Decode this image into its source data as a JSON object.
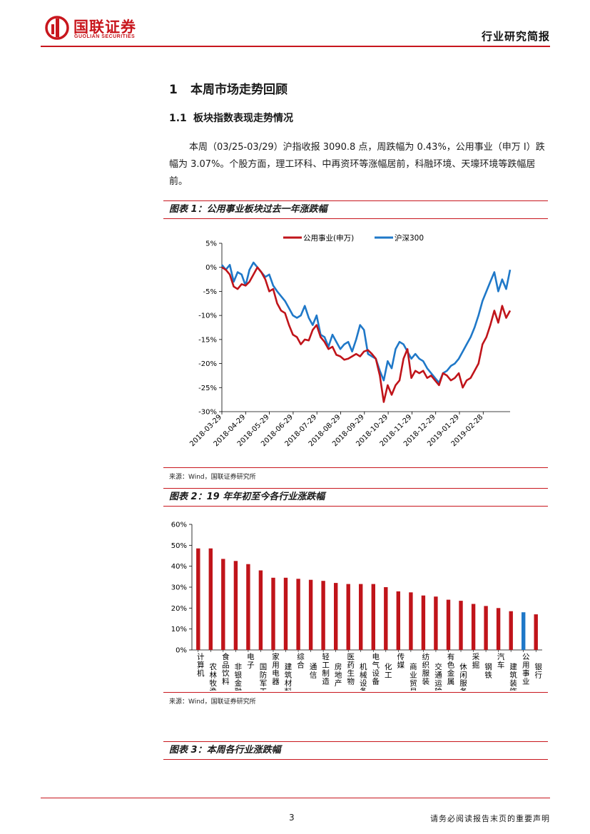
{
  "header": {
    "logo_cn": "国联证券",
    "logo_en": "GUOLIAN SECURITIES",
    "report_type": "行业研究简报"
  },
  "section": {
    "num": "1",
    "title": "本周市场走势回顾",
    "sub_num": "1.1",
    "sub_title": "板块指数表现走势情况"
  },
  "paragraph": "本周（03/25-03/29）沪指收报 3090.8 点，周跌幅为 0.43%，公用事业（申万 I）跌幅为 3.07%。个股方面，理工环科、中再资环等涨幅居前，科融环境、天壕环境等跌幅居前。",
  "figures": [
    {
      "title": "图表 1：公用事业板块过去一年涨跌幅",
      "source": "来源：Wind，国联证券研究所"
    },
    {
      "title": "图表 2：19 年年初至今各行业涨跌幅",
      "source": "来源：Wind，国联证券研究所"
    },
    {
      "title": "图表 3：本周各行业涨跌幅"
    }
  ],
  "colors": {
    "brand": "#c8161d",
    "line_red": "#c0141a",
    "line_blue": "#1f78c8"
  },
  "chart_data": [
    {
      "type": "line",
      "title": "公用事业板块过去一年涨跌幅",
      "x_ticks": [
        "2018-03-29",
        "2018-04-29",
        "2018-05-29",
        "2018-06-29",
        "2018-07-29",
        "2018-08-29",
        "2018-09-29",
        "2018-10-29",
        "2018-11-29",
        "2018-12-29",
        "2019-01-29",
        "2019-02-28"
      ],
      "ylim": [
        -30,
        5
      ],
      "y_ticks": [
        "5%",
        "0%",
        "-5%",
        "-10%",
        "-15%",
        "-20%",
        "-25%",
        "-30%"
      ],
      "series": [
        {
          "name": "公用事业(申万)",
          "color": "#c0141a",
          "values": [
            0,
            -0.5,
            -1.5,
            -4,
            -4.5,
            -3.5,
            -3.8,
            -3,
            -1.5,
            0,
            -1,
            -2.5,
            -5,
            -4.5,
            -7.5,
            -9,
            -9.5,
            -12,
            -14,
            -14.5,
            -16,
            -15,
            -15.2,
            -13,
            -12,
            -14.5,
            -15.5,
            -17,
            -16.5,
            -18.2,
            -18.5,
            -19.2,
            -19,
            -18.5,
            -18,
            -18.5,
            -17.5,
            -17.2,
            -18,
            -19,
            -22.5,
            -28,
            -24.5,
            -26.5,
            -24.5,
            -23.5,
            -19,
            -17,
            -23,
            -21.5,
            -22,
            -21.5,
            -23,
            -22.5,
            -23.5,
            -24.5,
            -22,
            -22.5,
            -23.5,
            -23,
            -22,
            -25,
            -23.5,
            -23,
            -21.5,
            -20,
            -16,
            -14.5,
            -12,
            -9,
            -11.5,
            -8,
            -10.5,
            -9
          ]
        },
        {
          "name": "沪深300",
          "color": "#1f78c8",
          "values": [
            0.5,
            -0.5,
            0.5,
            -3,
            -1,
            -1.5,
            -3.8,
            -0.5,
            1,
            0,
            -1,
            -2,
            -1.5,
            -3.8,
            -5,
            -6,
            -7,
            -8.5,
            -10,
            -10.5,
            -10,
            -8,
            -10.5,
            -12,
            -10,
            -14,
            -14.5,
            -16.5,
            -14,
            -15.5,
            -17,
            -16,
            -15.5,
            -17.5,
            -15,
            -12,
            -13,
            -18,
            -18.5,
            -19,
            -21.5,
            -23.5,
            -19.5,
            -21,
            -17,
            -15.5,
            -16,
            -17.5,
            -19,
            -18,
            -19,
            -19.5,
            -21,
            -22,
            -23,
            -24,
            -22,
            -21.5,
            -20.5,
            -20,
            -19,
            -17.5,
            -16,
            -14.5,
            -12.5,
            -10,
            -7,
            -5,
            -3,
            -1,
            -5,
            -2.5,
            -4.5,
            -0.5
          ]
        }
      ]
    },
    {
      "type": "bar",
      "title": "19 年年初至今各行业涨跌幅",
      "ylim": [
        0,
        60
      ],
      "y_ticks": [
        "0%",
        "10%",
        "20%",
        "30%",
        "40%",
        "50%",
        "60%"
      ],
      "categories": [
        "计算机",
        "农林牧渔",
        "食品饮料",
        "非银金融",
        "电子",
        "国防军工",
        "家用电器",
        "建筑材料",
        "综合",
        "通信",
        "轻工制造",
        "房地产",
        "医药生物",
        "机械设备",
        "电气设备",
        "化工",
        "传媒",
        "商业贸易",
        "纺织服装",
        "交通运输",
        "有色金属",
        "休闲服务",
        "采掘",
        "钢铁",
        "汽车",
        "建筑装饰",
        "公用事业",
        "银行"
      ],
      "values": [
        48.5,
        48.5,
        43.5,
        42.5,
        41,
        38,
        34.5,
        34.5,
        34,
        33.5,
        33,
        32,
        31.5,
        31.5,
        31.5,
        30,
        28,
        27.5,
        26,
        25.5,
        24,
        23.5,
        22,
        21,
        20,
        18.5,
        18,
        17
      ],
      "highlight": "公用事业",
      "bar_color": "#c0141a",
      "highlight_color": "#1f78c8"
    }
  ],
  "footer": {
    "page": "3",
    "disclaimer": "请务必阅读报告末页的重要声明"
  }
}
